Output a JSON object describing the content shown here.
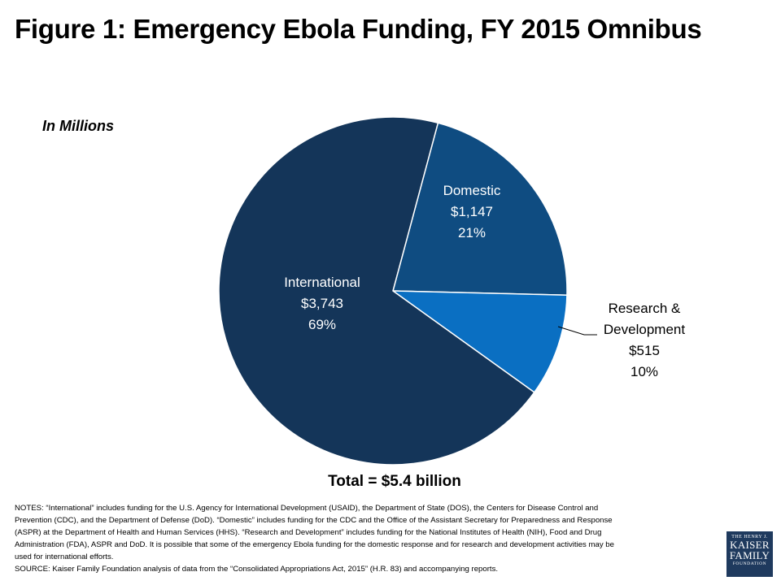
{
  "title": "Figure 1: Emergency Ebola Funding, FY 2015 Omnibus",
  "unit_label": "In Millions",
  "total_label": "Total = $5.4 billion",
  "chart_data": {
    "type": "pie",
    "title": "Figure 1: Emergency Ebola Funding, FY 2015 Omnibus",
    "unit": "In Millions",
    "slices": [
      {
        "name": "Domestic",
        "label_lines": [
          "Domestic"
        ],
        "value": 1147,
        "value_label": "$1,147",
        "percent": 21,
        "percent_label": "21%",
        "color": "#0f4c81",
        "label_color": "#ffffff"
      },
      {
        "name": "Research & Development",
        "label_lines": [
          "Research &",
          "Development"
        ],
        "value": 515,
        "value_label": "$515",
        "percent": 10,
        "percent_label": "10%",
        "color": "#0a6fc2",
        "label_color": "#000000"
      },
      {
        "name": "International",
        "label_lines": [
          "International"
        ],
        "value": 3743,
        "value_label": "$3,743",
        "percent": 69,
        "percent_label": "69%",
        "color": "#143559",
        "label_color": "#ffffff"
      }
    ],
    "total": "Total = $5.4 billion"
  },
  "notes": {
    "lines": [
      "NOTES: “International” includes funding for the U.S. Agency for International Development (USAID), the Department of State (DOS), the Centers for Disease Control and",
      "Prevention (CDC), and the Department of Defense (DoD). “Domestic” includes funding for the CDC and the Office of the Assistant Secretary for Preparedness and Response",
      "(ASPR) at the Department of Health and Human Services (HHS). “Research and Development” includes funding for the National Institutes of Health (NIH), Food and Drug",
      "Administration (FDA), ASPR and DoD. It is possible that some of the emergency Ebola funding for the domestic response and for research and development activities may be",
      "used for international efforts.",
      "SOURCE: Kaiser Family Foundation analysis of data from the “Consolidated Appropriations Act, 2015” (H.R. 83) and accompanying reports."
    ]
  },
  "logo": {
    "line1": "THE HENRY J.",
    "line2": "KAISER",
    "line3": "FAMILY",
    "line4": "FOUNDATION"
  }
}
